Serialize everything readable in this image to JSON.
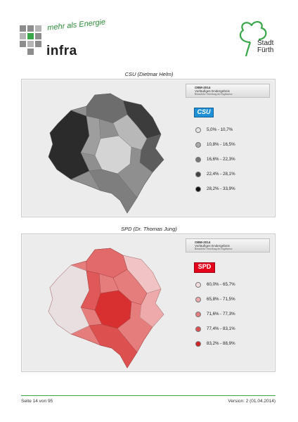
{
  "header": {
    "infra_logo": {
      "word": "infra",
      "slogan": "mehr als Energie"
    },
    "city_logo": {
      "line1": "Stadt",
      "line2": "Fürth",
      "icon": "cloverleaf-icon"
    }
  },
  "maps": [
    {
      "title": "CSU (Dietmar Helm)",
      "legend": {
        "header_line1": "OBM-2014",
        "header_line2": "Vorläufiges Endergebnis",
        "header_line3": "Räumliche Verteilung der Ergebnisse",
        "party": "CSU",
        "party_color": "#1e90d8",
        "classes": [
          {
            "label": "5,0% - 10,7%",
            "color": "#e4e4e4"
          },
          {
            "label": "10,8% - 16,5%",
            "color": "#a9a9a9"
          },
          {
            "label": "16,6% - 22,3%",
            "color": "#767676"
          },
          {
            "label": "22,4% - 28,1%",
            "color": "#434343"
          },
          {
            "label": "28,2% - 33,9%",
            "color": "#111111"
          }
        ]
      }
    },
    {
      "title": "SPD (Dr. Thomas Jung)",
      "legend": {
        "header_line1": "OBM-2014",
        "header_line2": "Vorläufiges Endergebnis",
        "header_line3": "Räumliche Verteilung der Ergebnisse",
        "party": "SPD",
        "party_color": "#e3001b",
        "classes": [
          {
            "label": "60,0% - 65,7%",
            "color": "#f6dcdc"
          },
          {
            "label": "65,8% - 71,5%",
            "color": "#eeaaaa"
          },
          {
            "label": "71,6% - 77,3%",
            "color": "#e57d7d"
          },
          {
            "label": "77,4% - 83,1%",
            "color": "#dd5050"
          },
          {
            "label": "83,2% - 88,9%",
            "color": "#d42020"
          }
        ]
      }
    }
  ],
  "footer": {
    "page": "Seite 14 von 95",
    "version": "Version: 2 (01.04.2014)"
  }
}
